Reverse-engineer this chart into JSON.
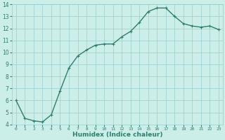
{
  "x": [
    0,
    1,
    2,
    3,
    4,
    5,
    6,
    7,
    8,
    9,
    10,
    11,
    12,
    13,
    14,
    15,
    16,
    17,
    18,
    19,
    20,
    21,
    22,
    23
  ],
  "y": [
    6.0,
    4.5,
    4.3,
    4.2,
    4.8,
    6.8,
    8.7,
    9.7,
    10.2,
    10.6,
    10.7,
    10.7,
    11.3,
    11.75,
    12.5,
    13.4,
    13.7,
    13.7,
    13.0,
    12.4,
    12.2,
    12.1,
    12.2,
    11.9
  ],
  "xlabel": "Humidex (Indice chaleur)",
  "ylim": [
    4,
    14
  ],
  "xlim": [
    -0.5,
    23.5
  ],
  "yticks": [
    4,
    5,
    6,
    7,
    8,
    9,
    10,
    11,
    12,
    13,
    14
  ],
  "xticks": [
    0,
    1,
    2,
    3,
    4,
    5,
    6,
    7,
    8,
    9,
    10,
    11,
    12,
    13,
    14,
    15,
    16,
    17,
    18,
    19,
    20,
    21,
    22,
    23
  ],
  "line_color": "#2e7d6e",
  "marker": "+",
  "bg_color": "#cceee8",
  "grid_color": "#99cccc"
}
